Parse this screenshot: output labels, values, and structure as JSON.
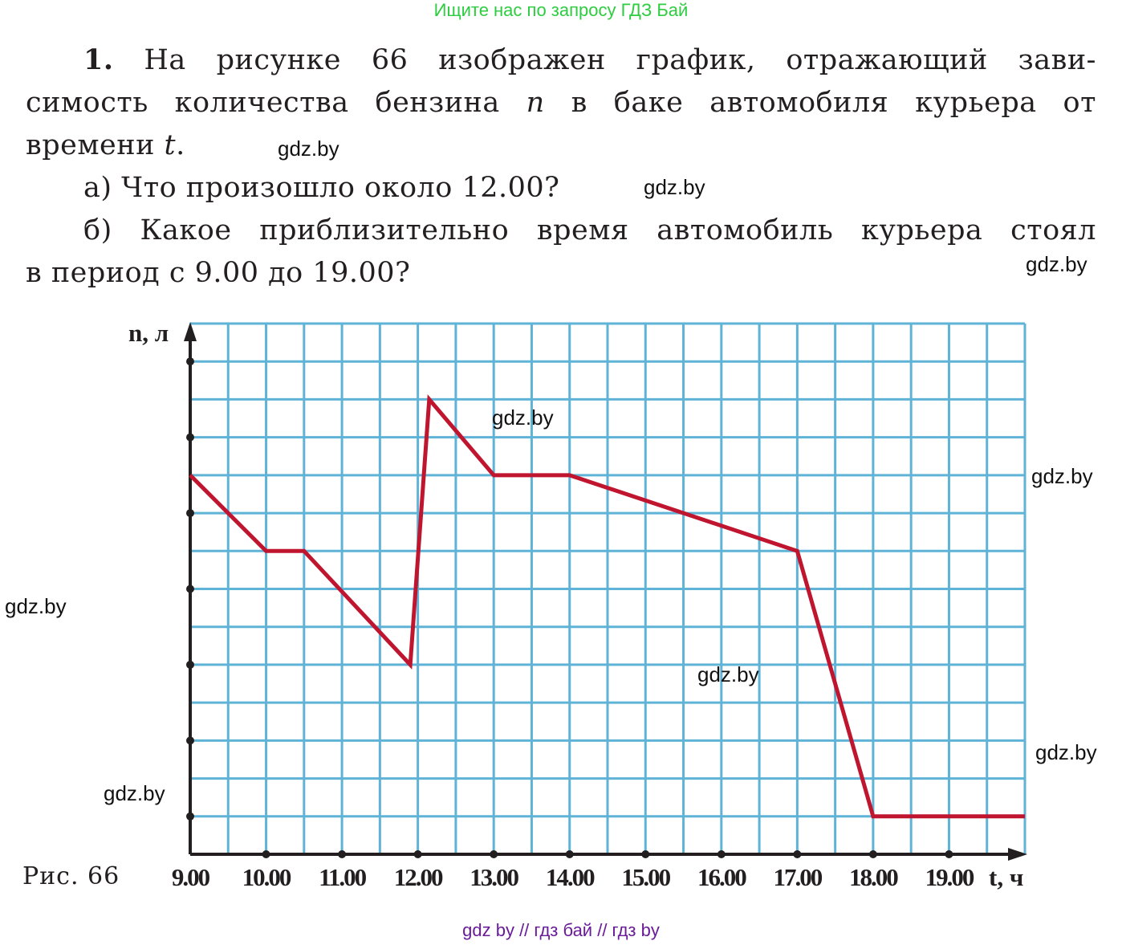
{
  "banner": "Ищите нас по запросу ГДЗ Бай",
  "problem": {
    "number": "1.",
    "line1_rest": "На рисунке 66 изображен график, отражающий зави-",
    "line2_a": "симость количества бензина ",
    "var_n": "n",
    "line2_b": " в баке автомобиля курьера от",
    "line3_a": "времени ",
    "var_t": "t",
    "line3_b": ".",
    "qa": "а) Что произошло около 12.00?",
    "qb_line1": "б) Какое приблизительно время автомобиль курьера стоял",
    "qb_line2": "в период с 9.00 до 19.00?"
  },
  "watermark_text": "gdz.by",
  "caption": "Рис. 66",
  "footer": "gdz by  //  гдз бай  //  гдз by",
  "chart_data": {
    "type": "line",
    "title": "",
    "xlabel": "t, ч",
    "ylabel": "n, л",
    "categories": [
      "9.00",
      "10.00",
      "11.00",
      "12.00",
      "13.00",
      "14.00",
      "15.00",
      "16.00",
      "17.00",
      "18.00",
      "19.00"
    ],
    "xlim": [
      9,
      20
    ],
    "ylim": [
      0,
      14
    ],
    "grid": true,
    "grid_step_x": 0.5,
    "grid_step_y": 1,
    "y_tick_marks": [
      1,
      2,
      3,
      4,
      5,
      6,
      7,
      8,
      9,
      10,
      11,
      12,
      13
    ],
    "series": [
      {
        "x": [
          9,
          10,
          10.5,
          11.9,
          12.15,
          13,
          14,
          17,
          18,
          20
        ],
        "y": [
          10,
          8,
          8,
          5,
          12,
          10,
          10,
          8,
          1,
          1
        ]
      }
    ],
    "colors": {
      "line": "#c0152f",
      "grid": "#5fb3d6",
      "axis": "#231f20"
    }
  }
}
